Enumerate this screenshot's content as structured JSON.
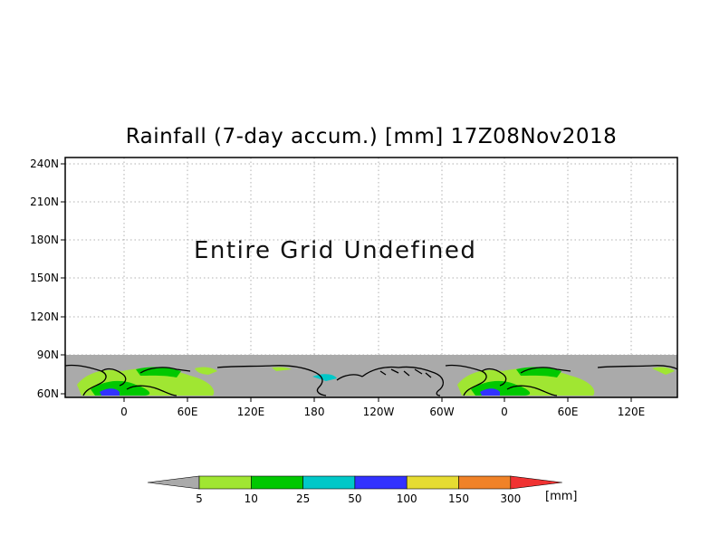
{
  "map": {
    "title": "Rainfall (7-day accum.) [mm] 17Z08Nov2018",
    "overlay_text": "Entire Grid Undefined",
    "y_ticks": [
      "240N",
      "210N",
      "180N",
      "150N",
      "120N",
      "90N",
      "60N"
    ],
    "x_ticks": [
      "0",
      "60E",
      "120E",
      "180",
      "120W",
      "60W",
      "0",
      "60E",
      "120E"
    ],
    "colors": {
      "gray": "#aaaaaa",
      "land_outline": "#000000",
      "grid": "#b0b0b0"
    }
  },
  "legend": {
    "labels": [
      "5",
      "10",
      "25",
      "50",
      "100",
      "150",
      "300"
    ],
    "unit": "[mm]",
    "colors": [
      "#a0e632",
      "#00c800",
      "#00c8c8",
      "#3232ff",
      "#e6dc32",
      "#f08228",
      "#f03232"
    ],
    "under_color": "#aaaaaa"
  }
}
